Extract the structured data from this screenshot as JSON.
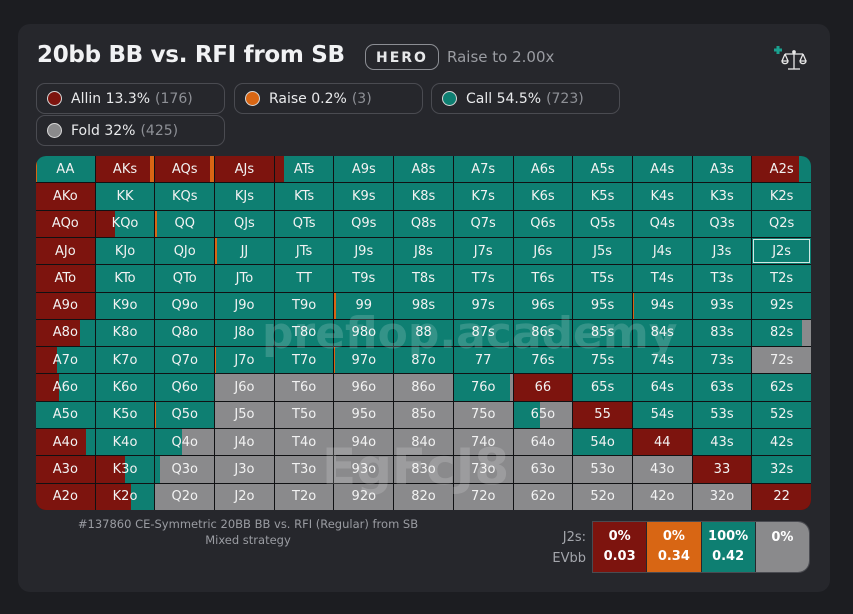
{
  "header": {
    "title": "20bb BB vs. RFI from SB",
    "badge": "HERO",
    "subtitle": "Raise to 2.00x",
    "compare_icon": "scale-plus-icon"
  },
  "colors": {
    "allin": "#7d140e",
    "raise": "#d86614",
    "call": "#0e7f72",
    "fold": "#8a8a8c",
    "bg": "#26272c"
  },
  "legend": [
    {
      "key": "allin",
      "label": "Allin 13.3%",
      "count": "(176)"
    },
    {
      "key": "raise",
      "label": "Raise 0.2%",
      "count": "(3)"
    },
    {
      "key": "call",
      "label": "Call 54.5%",
      "count": "(723)"
    },
    {
      "key": "fold",
      "label": "Fold 32%",
      "count": "(425)"
    }
  ],
  "matrix": {
    "rows": [
      [
        "AA",
        "AKs",
        "AQs",
        "AJs",
        "ATs",
        "A9s",
        "A8s",
        "A7s",
        "A6s",
        "A5s",
        "A4s",
        "A3s",
        "A2s"
      ],
      [
        "AKo",
        "KK",
        "KQs",
        "KJs",
        "KTs",
        "K9s",
        "K8s",
        "K7s",
        "K6s",
        "K5s",
        "K4s",
        "K3s",
        "K2s"
      ],
      [
        "AQo",
        "KQo",
        "QQ",
        "QJs",
        "QTs",
        "Q9s",
        "Q8s",
        "Q7s",
        "Q6s",
        "Q5s",
        "Q4s",
        "Q3s",
        "Q2s"
      ],
      [
        "AJo",
        "KJo",
        "QJo",
        "JJ",
        "JTs",
        "J9s",
        "J8s",
        "J7s",
        "J6s",
        "J5s",
        "J4s",
        "J3s",
        "J2s"
      ],
      [
        "ATo",
        "KTo",
        "QTo",
        "JTo",
        "TT",
        "T9s",
        "T8s",
        "T7s",
        "T6s",
        "T5s",
        "T4s",
        "T3s",
        "T2s"
      ],
      [
        "A9o",
        "K9o",
        "Q9o",
        "J9o",
        "T9o",
        "99",
        "98s",
        "97s",
        "96s",
        "95s",
        "94s",
        "93s",
        "92s"
      ],
      [
        "A8o",
        "K8o",
        "Q8o",
        "J8o",
        "T8o",
        "98o",
        "88",
        "87s",
        "86s",
        "85s",
        "84s",
        "83s",
        "82s"
      ],
      [
        "A7o",
        "K7o",
        "Q7o",
        "J7o",
        "T7o",
        "97o",
        "87o",
        "77",
        "76s",
        "75s",
        "74s",
        "73s",
        "72s"
      ],
      [
        "A6o",
        "K6o",
        "Q6o",
        "J6o",
        "T6o",
        "96o",
        "86o",
        "76o",
        "66",
        "65s",
        "64s",
        "63s",
        "62s"
      ],
      [
        "A5o",
        "K5o",
        "Q5o",
        "J5o",
        "T5o",
        "95o",
        "85o",
        "75o",
        "65o",
        "55",
        "54s",
        "53s",
        "52s"
      ],
      [
        "A4o",
        "K4o",
        "Q4o",
        "J4o",
        "T4o",
        "94o",
        "84o",
        "74o",
        "64o",
        "54o",
        "44",
        "43s",
        "42s"
      ],
      [
        "A3o",
        "K3o",
        "Q3o",
        "J3o",
        "T3o",
        "93o",
        "83o",
        "73o",
        "63o",
        "53o",
        "43o",
        "33",
        "32s"
      ],
      [
        "A2o",
        "K2o",
        "Q2o",
        "J2o",
        "T2o",
        "92o",
        "82o",
        "72o",
        "62o",
        "52o",
        "42o",
        "32o",
        "22"
      ]
    ],
    "default_strategy": {
      "allin": 0,
      "raise": 0,
      "call": 1,
      "fold": 0
    },
    "strategies": {
      "AA": {
        "allin": 0,
        "raise": 0.02,
        "call": 0.98,
        "fold": 0
      },
      "AKs": {
        "allin": 0.93,
        "raise": 0.07,
        "call": 0,
        "fold": 0
      },
      "AQs": {
        "allin": 0.93,
        "raise": 0.07,
        "call": 0,
        "fold": 0
      },
      "AJs": {
        "allin": 1,
        "raise": 0,
        "call": 0,
        "fold": 0
      },
      "ATs": {
        "allin": 0.15,
        "raise": 0,
        "call": 0.85,
        "fold": 0
      },
      "A2s": {
        "allin": 0.8,
        "raise": 0,
        "call": 0.2,
        "fold": 0
      },
      "AKo": {
        "allin": 1,
        "raise": 0,
        "call": 0,
        "fold": 0
      },
      "AQo": {
        "allin": 1,
        "raise": 0,
        "call": 0,
        "fold": 0
      },
      "KQo": {
        "allin": 0.33,
        "raise": 0,
        "call": 0.67,
        "fold": 0
      },
      "QQ": {
        "allin": 0,
        "raise": 0.03,
        "call": 0.97,
        "fold": 0
      },
      "AJo": {
        "allin": 1,
        "raise": 0,
        "call": 0,
        "fold": 0
      },
      "JJ": {
        "allin": 0,
        "raise": 0.03,
        "call": 0.97,
        "fold": 0
      },
      "ATo": {
        "allin": 1,
        "raise": 0,
        "call": 0,
        "fold": 0
      },
      "A9o": {
        "allin": 1,
        "raise": 0,
        "call": 0,
        "fold": 0
      },
      "99": {
        "allin": 0,
        "raise": 0.02,
        "call": 0.98,
        "fold": 0
      },
      "94s": {
        "allin": 0,
        "raise": 0.01,
        "call": 0.99,
        "fold": 0
      },
      "A8o": {
        "allin": 0.75,
        "raise": 0,
        "call": 0.25,
        "fold": 0
      },
      "K8o": {
        "allin": 0,
        "raise": 0.01,
        "call": 0.99,
        "fold": 0
      },
      "82s": {
        "allin": 0,
        "raise": 0,
        "call": 0.85,
        "fold": 0.15
      },
      "A7o": {
        "allin": 0.35,
        "raise": 0,
        "call": 0.65,
        "fold": 0
      },
      "J7o": {
        "allin": 0,
        "raise": 0.01,
        "call": 0.99,
        "fold": 0
      },
      "97o": {
        "allin": 0,
        "raise": 0.01,
        "call": 0.99,
        "fold": 0
      },
      "72s": {
        "allin": 0,
        "raise": 0,
        "call": 0,
        "fold": 1
      },
      "A6o": {
        "allin": 0.4,
        "raise": 0,
        "call": 0.6,
        "fold": 0
      },
      "J6o": {
        "allin": 0,
        "raise": 0,
        "call": 0,
        "fold": 1
      },
      "T6o": {
        "allin": 0,
        "raise": 0,
        "call": 0,
        "fold": 1
      },
      "96o": {
        "allin": 0,
        "raise": 0,
        "call": 0,
        "fold": 1
      },
      "86o": {
        "allin": 0,
        "raise": 0,
        "call": 0,
        "fold": 1
      },
      "76o": {
        "allin": 0,
        "raise": 0,
        "call": 0.95,
        "fold": 0.05
      },
      "66": {
        "allin": 1,
        "raise": 0,
        "call": 0,
        "fold": 0
      },
      "Q5o": {
        "allin": 0,
        "raise": 0.01,
        "call": 0.99,
        "fold": 0
      },
      "J5o": {
        "allin": 0,
        "raise": 0,
        "call": 0,
        "fold": 1
      },
      "T5o": {
        "allin": 0,
        "raise": 0,
        "call": 0,
        "fold": 1
      },
      "95o": {
        "allin": 0,
        "raise": 0,
        "call": 0,
        "fold": 1
      },
      "85o": {
        "allin": 0,
        "raise": 0,
        "call": 0,
        "fold": 1
      },
      "75o": {
        "allin": 0,
        "raise": 0,
        "call": 0,
        "fold": 1
      },
      "65o": {
        "allin": 0,
        "raise": 0,
        "call": 0.45,
        "fold": 0.55
      },
      "55": {
        "allin": 1,
        "raise": 0,
        "call": 0,
        "fold": 0
      },
      "A4o": {
        "allin": 0.85,
        "raise": 0,
        "call": 0.15,
        "fold": 0
      },
      "Q4o": {
        "allin": 0,
        "raise": 0,
        "call": 0.45,
        "fold": 0.55
      },
      "J4o": {
        "allin": 0,
        "raise": 0,
        "call": 0,
        "fold": 1
      },
      "T4o": {
        "allin": 0,
        "raise": 0,
        "call": 0,
        "fold": 1
      },
      "94o": {
        "allin": 0,
        "raise": 0,
        "call": 0,
        "fold": 1
      },
      "84o": {
        "allin": 0,
        "raise": 0,
        "call": 0,
        "fold": 1
      },
      "74o": {
        "allin": 0,
        "raise": 0,
        "call": 0,
        "fold": 1
      },
      "64o": {
        "allin": 0,
        "raise": 0,
        "call": 0,
        "fold": 1
      },
      "44": {
        "allin": 1,
        "raise": 0,
        "call": 0,
        "fold": 0
      },
      "A3o": {
        "allin": 1,
        "raise": 0,
        "call": 0,
        "fold": 0
      },
      "K3o": {
        "allin": 0.5,
        "raise": 0,
        "call": 0.5,
        "fold": 0
      },
      "Q3o": {
        "allin": 0,
        "raise": 0,
        "call": 0.08,
        "fold": 0.92
      },
      "J3o": {
        "allin": 0,
        "raise": 0,
        "call": 0,
        "fold": 1
      },
      "T3o": {
        "allin": 0,
        "raise": 0,
        "call": 0,
        "fold": 1
      },
      "93o": {
        "allin": 0,
        "raise": 0,
        "call": 0,
        "fold": 1
      },
      "83o": {
        "allin": 0,
        "raise": 0,
        "call": 0,
        "fold": 1
      },
      "73o": {
        "allin": 0,
        "raise": 0,
        "call": 0,
        "fold": 1
      },
      "63o": {
        "allin": 0,
        "raise": 0,
        "call": 0,
        "fold": 1
      },
      "53o": {
        "allin": 0,
        "raise": 0,
        "call": 0,
        "fold": 1
      },
      "43o": {
        "allin": 0,
        "raise": 0,
        "call": 0,
        "fold": 1
      },
      "33": {
        "allin": 1,
        "raise": 0,
        "call": 0,
        "fold": 0
      },
      "A2o": {
        "allin": 1,
        "raise": 0,
        "call": 0,
        "fold": 0
      },
      "K2o": {
        "allin": 0.6,
        "raise": 0,
        "call": 0.4,
        "fold": 0
      },
      "Q2o": {
        "allin": 0,
        "raise": 0,
        "call": 0,
        "fold": 1
      },
      "J2o": {
        "allin": 0,
        "raise": 0,
        "call": 0,
        "fold": 1
      },
      "T2o": {
        "allin": 0,
        "raise": 0,
        "call": 0,
        "fold": 1
      },
      "92o": {
        "allin": 0,
        "raise": 0,
        "call": 0,
        "fold": 1
      },
      "82o": {
        "allin": 0,
        "raise": 0,
        "call": 0,
        "fold": 1
      },
      "72o": {
        "allin": 0,
        "raise": 0,
        "call": 0,
        "fold": 1
      },
      "62o": {
        "allin": 0,
        "raise": 0,
        "call": 0,
        "fold": 1
      },
      "52o": {
        "allin": 0,
        "raise": 0,
        "call": 0,
        "fold": 1
      },
      "42o": {
        "allin": 0,
        "raise": 0,
        "call": 0,
        "fold": 1
      },
      "32o": {
        "allin": 0,
        "raise": 0,
        "call": 0,
        "fold": 1
      },
      "22": {
        "allin": 1,
        "raise": 0,
        "call": 0,
        "fold": 0
      }
    },
    "selected": "J2s"
  },
  "watermarks": {
    "site": "preflop.academy",
    "user": "EgFcJ8"
  },
  "footnote": {
    "line1": "#137860 CE-Symmetric 20BB BB vs. RFI (Regular) from SB",
    "line2": "Mixed strategy"
  },
  "detail": {
    "hand_label": "J2s:",
    "ev_label": "EVbb",
    "actions": [
      {
        "key": "allin",
        "freq": "0%",
        "ev": "0.03"
      },
      {
        "key": "raise",
        "freq": "0%",
        "ev": "0.34"
      },
      {
        "key": "call",
        "freq": "100%",
        "ev": "0.42"
      },
      {
        "key": "fold",
        "freq": "0%",
        "ev": ""
      }
    ]
  }
}
